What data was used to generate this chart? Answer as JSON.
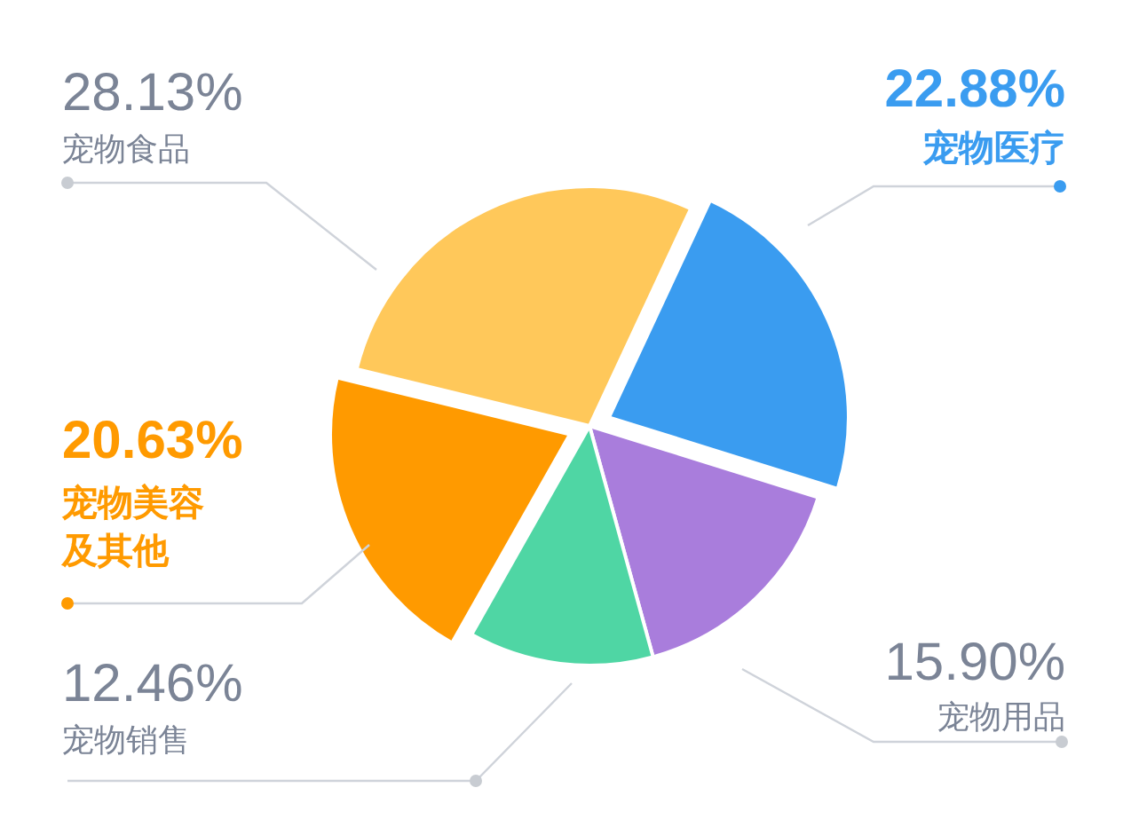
{
  "chart_data": {
    "type": "pie",
    "categories": [
      "宠物医疗",
      "宠物用品",
      "宠物销售",
      "宠物美容及其他",
      "宠物食品"
    ],
    "values": [
      22.88,
      15.9,
      12.46,
      20.63,
      28.13
    ],
    "value_labels": [
      "22.88%",
      "15.90%",
      "12.46%",
      "20.63%",
      "28.13%"
    ],
    "colors": [
      "#3a9cf0",
      "#a97ddc",
      "#4fd6a4",
      "#ff9a00",
      "#ffc85a"
    ]
  }
}
